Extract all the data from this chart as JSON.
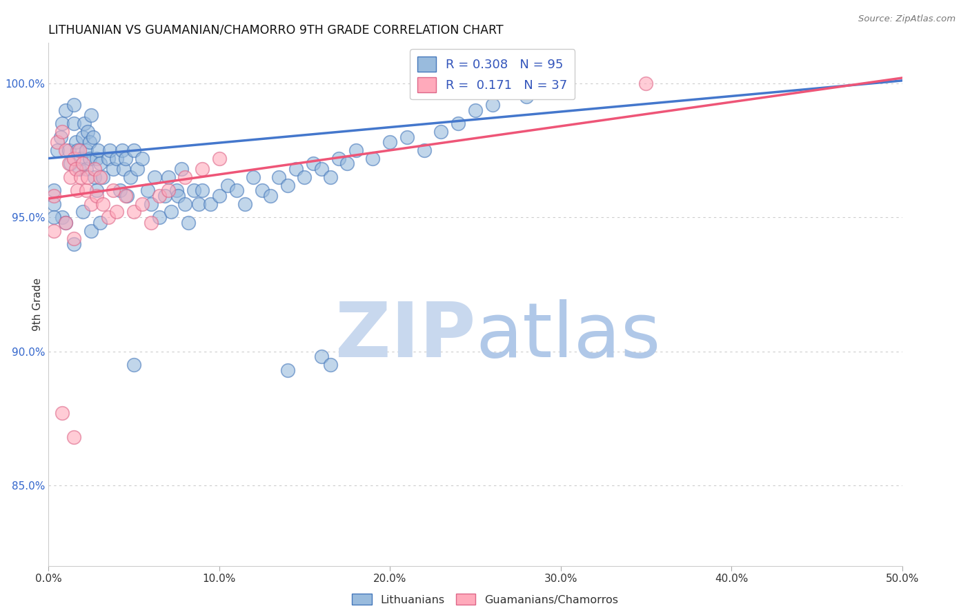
{
  "title": "LITHUANIAN VS GUAMANIAN/CHAMORRO 9TH GRADE CORRELATION CHART",
  "source": "Source: ZipAtlas.com",
  "ylabel": "9th Grade",
  "ytick_vals": [
    0.85,
    0.9,
    0.95,
    1.0
  ],
  "ytick_labels": [
    "85.0%",
    "90.0%",
    "95.0%",
    "100.0%"
  ],
  "xtick_vals": [
    0.0,
    0.1,
    0.2,
    0.3,
    0.4,
    0.5
  ],
  "xtick_labels": [
    "0.0%",
    "10.0%",
    "20.0%",
    "30.0%",
    "40.0%",
    "50.0%"
  ],
  "xlim": [
    0.0,
    0.5
  ],
  "ylim": [
    0.82,
    1.015
  ],
  "legend_blue_r": "0.308",
  "legend_blue_n": "95",
  "legend_pink_r": "0.171",
  "legend_pink_n": "37",
  "blue_fill": "#99BBDD",
  "blue_edge": "#4477BB",
  "pink_fill": "#FFAABB",
  "pink_edge": "#DD6688",
  "blue_line_color": "#4477CC",
  "pink_line_color": "#EE5577",
  "blue_scatter": [
    [
      0.005,
      0.975
    ],
    [
      0.007,
      0.98
    ],
    [
      0.008,
      0.985
    ],
    [
      0.01,
      0.99
    ],
    [
      0.012,
      0.975
    ],
    [
      0.013,
      0.97
    ],
    [
      0.015,
      0.985
    ],
    [
      0.015,
      0.992
    ],
    [
      0.016,
      0.978
    ],
    [
      0.017,
      0.975
    ],
    [
      0.018,
      0.968
    ],
    [
      0.019,
      0.972
    ],
    [
      0.02,
      0.98
    ],
    [
      0.021,
      0.985
    ],
    [
      0.022,
      0.975
    ],
    [
      0.022,
      0.968
    ],
    [
      0.023,
      0.982
    ],
    [
      0.024,
      0.978
    ],
    [
      0.024,
      0.972
    ],
    [
      0.025,
      0.988
    ],
    [
      0.026,
      0.98
    ],
    [
      0.027,
      0.965
    ],
    [
      0.028,
      0.972
    ],
    [
      0.028,
      0.96
    ],
    [
      0.029,
      0.975
    ],
    [
      0.03,
      0.97
    ],
    [
      0.032,
      0.965
    ],
    [
      0.035,
      0.972
    ],
    [
      0.036,
      0.975
    ],
    [
      0.038,
      0.968
    ],
    [
      0.04,
      0.972
    ],
    [
      0.042,
      0.96
    ],
    [
      0.043,
      0.975
    ],
    [
      0.044,
      0.968
    ],
    [
      0.045,
      0.972
    ],
    [
      0.046,
      0.958
    ],
    [
      0.048,
      0.965
    ],
    [
      0.05,
      0.975
    ],
    [
      0.052,
      0.968
    ],
    [
      0.055,
      0.972
    ],
    [
      0.058,
      0.96
    ],
    [
      0.06,
      0.955
    ],
    [
      0.062,
      0.965
    ],
    [
      0.065,
      0.95
    ],
    [
      0.068,
      0.958
    ],
    [
      0.07,
      0.965
    ],
    [
      0.072,
      0.952
    ],
    [
      0.075,
      0.96
    ],
    [
      0.076,
      0.958
    ],
    [
      0.078,
      0.968
    ],
    [
      0.08,
      0.955
    ],
    [
      0.082,
      0.948
    ],
    [
      0.085,
      0.96
    ],
    [
      0.088,
      0.955
    ],
    [
      0.09,
      0.96
    ],
    [
      0.095,
      0.955
    ],
    [
      0.1,
      0.958
    ],
    [
      0.105,
      0.962
    ],
    [
      0.11,
      0.96
    ],
    [
      0.115,
      0.955
    ],
    [
      0.12,
      0.965
    ],
    [
      0.125,
      0.96
    ],
    [
      0.13,
      0.958
    ],
    [
      0.135,
      0.965
    ],
    [
      0.14,
      0.962
    ],
    [
      0.145,
      0.968
    ],
    [
      0.15,
      0.965
    ],
    [
      0.155,
      0.97
    ],
    [
      0.16,
      0.968
    ],
    [
      0.165,
      0.965
    ],
    [
      0.17,
      0.972
    ],
    [
      0.175,
      0.97
    ],
    [
      0.18,
      0.975
    ],
    [
      0.19,
      0.972
    ],
    [
      0.2,
      0.978
    ],
    [
      0.21,
      0.98
    ],
    [
      0.22,
      0.975
    ],
    [
      0.23,
      0.982
    ],
    [
      0.24,
      0.985
    ],
    [
      0.25,
      0.99
    ],
    [
      0.26,
      0.992
    ],
    [
      0.28,
      0.995
    ],
    [
      0.3,
      0.998
    ],
    [
      0.008,
      0.95
    ],
    [
      0.01,
      0.948
    ],
    [
      0.015,
      0.94
    ],
    [
      0.02,
      0.952
    ],
    [
      0.025,
      0.945
    ],
    [
      0.03,
      0.948
    ],
    [
      0.05,
      0.895
    ],
    [
      0.16,
      0.898
    ],
    [
      0.003,
      0.96
    ],
    [
      0.003,
      0.955
    ],
    [
      0.003,
      0.95
    ],
    [
      0.165,
      0.895
    ],
    [
      0.14,
      0.893
    ]
  ],
  "pink_scatter": [
    [
      0.005,
      0.978
    ],
    [
      0.008,
      0.982
    ],
    [
      0.01,
      0.975
    ],
    [
      0.012,
      0.97
    ],
    [
      0.013,
      0.965
    ],
    [
      0.015,
      0.972
    ],
    [
      0.016,
      0.968
    ],
    [
      0.017,
      0.96
    ],
    [
      0.018,
      0.975
    ],
    [
      0.019,
      0.965
    ],
    [
      0.02,
      0.97
    ],
    [
      0.022,
      0.96
    ],
    [
      0.023,
      0.965
    ],
    [
      0.025,
      0.955
    ],
    [
      0.027,
      0.968
    ],
    [
      0.028,
      0.958
    ],
    [
      0.03,
      0.965
    ],
    [
      0.032,
      0.955
    ],
    [
      0.035,
      0.95
    ],
    [
      0.038,
      0.96
    ],
    [
      0.04,
      0.952
    ],
    [
      0.045,
      0.958
    ],
    [
      0.05,
      0.952
    ],
    [
      0.055,
      0.955
    ],
    [
      0.06,
      0.948
    ],
    [
      0.065,
      0.958
    ],
    [
      0.07,
      0.96
    ],
    [
      0.08,
      0.965
    ],
    [
      0.09,
      0.968
    ],
    [
      0.1,
      0.972
    ],
    [
      0.35,
      1.0
    ],
    [
      0.01,
      0.948
    ],
    [
      0.015,
      0.942
    ],
    [
      0.008,
      0.877
    ],
    [
      0.015,
      0.868
    ],
    [
      0.003,
      0.945
    ],
    [
      0.003,
      0.958
    ]
  ],
  "blue_line": [
    [
      0.0,
      0.972
    ],
    [
      0.5,
      1.001
    ]
  ],
  "pink_line": [
    [
      0.0,
      0.957
    ],
    [
      0.5,
      1.002
    ]
  ],
  "watermark_zip_color": "#C8D8EE",
  "watermark_atlas_color": "#B0C8E8",
  "legend_bottom_blue_label": "Lithuanians",
  "legend_bottom_pink_label": "Guamanians/Chamorros"
}
